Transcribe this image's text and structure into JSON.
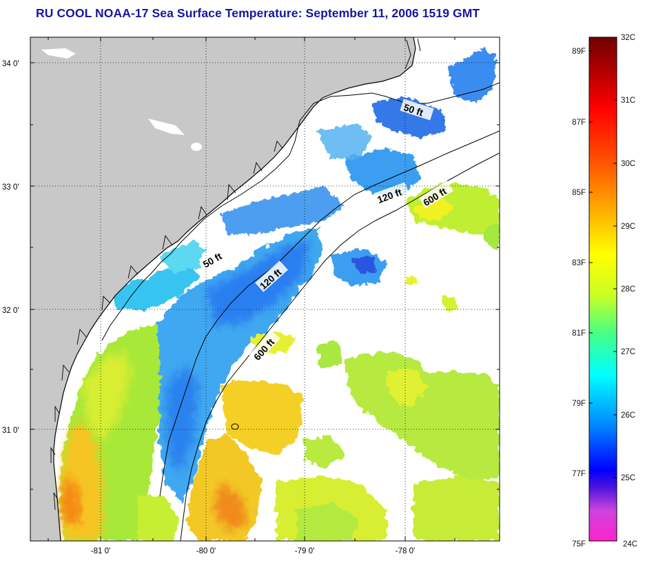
{
  "title": "RU COOL  NOAA-17  Sea Surface Temperature:  September 11, 2006 1519 GMT",
  "map": {
    "lat_ticks": [
      "34 0'",
      "33 0'",
      "32 0'",
      "31 0'"
    ],
    "lon_ticks": [
      "-81 0'",
      "-80 0'",
      "-79 0'",
      "-78 0'"
    ],
    "isobaths": [
      {
        "label": "50 ft"
      },
      {
        "label": "50 ft"
      },
      {
        "label": "120 ft"
      },
      {
        "label": "120 ft"
      },
      {
        "label": "600 ft"
      },
      {
        "label": "600 ft"
      }
    ],
    "colors": {
      "land": "#c8c8c8",
      "no_data": "#ffffff",
      "coast": "#000000"
    }
  },
  "colorbar": {
    "fahrenheit_labels": [
      "89F",
      "87F",
      "85F",
      "83F",
      "81F",
      "79F",
      "77F",
      "75F"
    ],
    "celsius_labels": [
      "32C",
      "31C",
      "30C",
      "29C",
      "28C",
      "27C",
      "26C",
      "25C",
      "24C"
    ],
    "colors": [
      "#ff22cc",
      "#cc44dd",
      "#4411dd",
      "#0000ff",
      "#0088ff",
      "#00ffff",
      "#44ff88",
      "#ccff22",
      "#ffff00",
      "#ffaa00",
      "#ff5500",
      "#ff0000",
      "#aa0000",
      "#700000"
    ]
  }
}
